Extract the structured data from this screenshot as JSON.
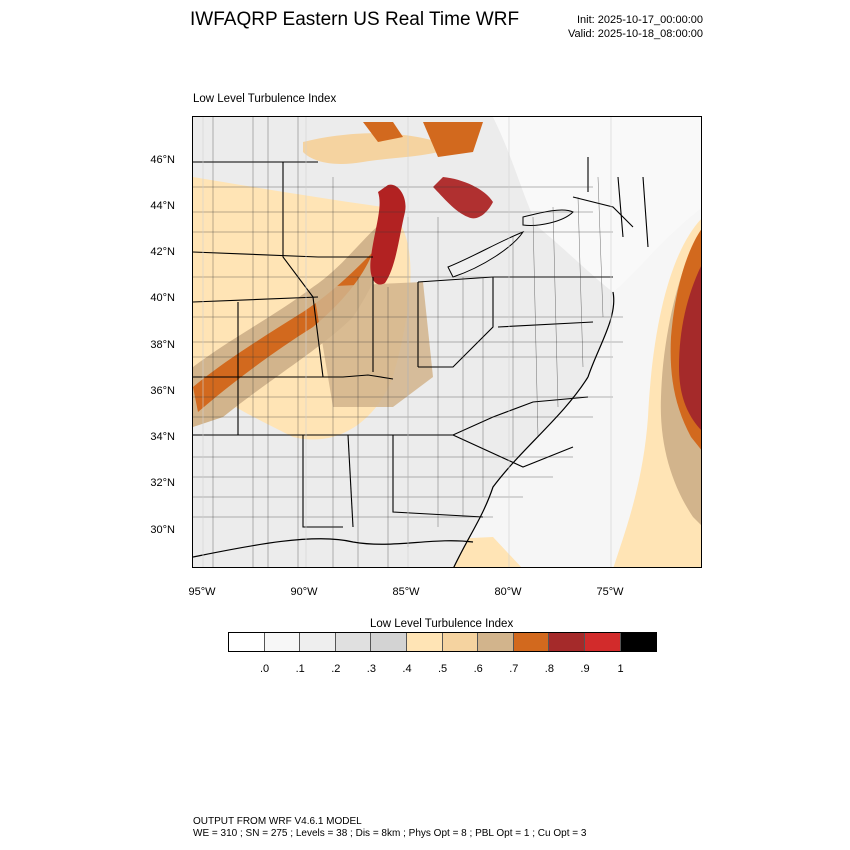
{
  "header": {
    "title": "IWFAQRP Eastern US Real Time WRF",
    "init": "Init: 2025-10-17_00:00:00",
    "valid": "Valid: 2025-10-18_08:00:00"
  },
  "plot": {
    "title": "Low Level Turbulence Index",
    "lat_labels": [
      "46°N",
      "44°N",
      "42°N",
      "40°N",
      "38°N",
      "36°N",
      "34°N",
      "32°N",
      "30°N"
    ],
    "lon_labels": [
      "95°W",
      "90°W",
      "85°W",
      "80°W",
      "75°W"
    ]
  },
  "colorbar": {
    "title": "Low Level Turbulence Index",
    "colors": [
      "#ffffff",
      "#f7f7f7",
      "#eeeeee",
      "#e0e0e0",
      "#d3d3d3",
      "#ffe4b5",
      "#f5d3a0",
      "#d2b48c",
      "#d2691e",
      "#a52a2a",
      "#d22b2b",
      "#000000"
    ],
    "ticks": [
      ".0",
      ".1",
      ".2",
      ".3",
      ".4",
      ".5",
      ".6",
      ".7",
      ".8",
      ".9",
      "1"
    ]
  },
  "footer": {
    "line1": "OUTPUT FROM WRF V4.6.1 MODEL",
    "line2": "WE = 310 ; SN = 275 ; Levels = 38 ; Dis = 8km ; Phys Opt = 8 ; PBL Opt = 1 ; Cu Opt = 3"
  }
}
